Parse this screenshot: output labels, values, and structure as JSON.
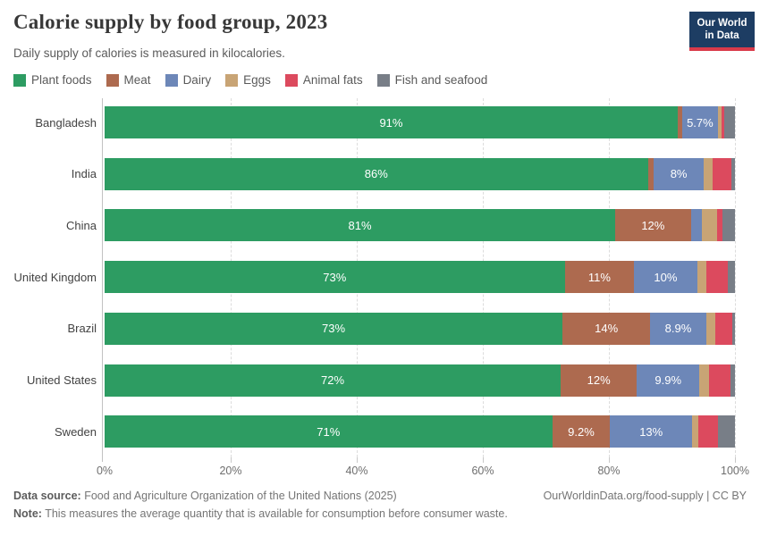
{
  "header": {
    "title": "Calorie supply by food group, 2023",
    "subtitle": "Daily supply of calories is measured in kilocalories.",
    "logo": {
      "line1": "Our World",
      "line2": "in Data",
      "bg_color": "#1d3d63",
      "accent_color": "#d93a4a"
    }
  },
  "chart_data": {
    "type": "bar",
    "stacked": true,
    "orientation": "horizontal",
    "unit": "%",
    "xlim": [
      0,
      100
    ],
    "grid": "dashed-vertical",
    "legend_position": "top",
    "categories": [
      "Bangladesh",
      "India",
      "China",
      "United Kingdom",
      "Brazil",
      "United States",
      "Sweden"
    ],
    "series": [
      {
        "name": "Plant foods",
        "slug": "plant-foods",
        "color": "#2d9c62",
        "values": [
          91,
          86,
          81,
          73,
          73,
          72,
          71
        ],
        "labels": [
          "91%",
          "86%",
          "81%",
          "73%",
          "73%",
          "72%",
          "71%"
        ]
      },
      {
        "name": "Meat",
        "slug": "meat",
        "color": "#ad6a4f",
        "values": [
          0.7,
          0.9,
          12,
          11,
          14,
          12,
          9.2
        ],
        "labels": [
          "",
          "",
          "12%",
          "11%",
          "14%",
          "12%",
          "9.2%"
        ]
      },
      {
        "name": "Dairy",
        "slug": "dairy",
        "color": "#6d87b8",
        "values": [
          5.7,
          8,
          1.7,
          10,
          8.9,
          9.9,
          13
        ],
        "labels": [
          "5.7%",
          "8%",
          "",
          "10%",
          "8.9%",
          "9.9%",
          "13%"
        ]
      },
      {
        "name": "Eggs",
        "slug": "eggs",
        "color": "#c8a475",
        "values": [
          0.6,
          1.4,
          2.4,
          1.4,
          1.4,
          1.5,
          1.0
        ],
        "labels": [
          "",
          "",
          "",
          "",
          "",
          "",
          ""
        ]
      },
      {
        "name": "Animal fats",
        "slug": "animal-fats",
        "color": "#dc4a5e",
        "values": [
          0.4,
          3.0,
          0.9,
          3.4,
          2.8,
          3.4,
          3.1
        ],
        "labels": [
          "",
          "",
          "",
          "",
          "",
          "",
          ""
        ]
      },
      {
        "name": "Fish and seafood",
        "slug": "fish-and-seafood",
        "color": "#787e87",
        "values": [
          1.7,
          0.5,
          2.0,
          1.2,
          0.4,
          0.7,
          2.7
        ],
        "labels": [
          "",
          "",
          "",
          "",
          "",
          "",
          ""
        ]
      }
    ],
    "xticks": [
      {
        "label": "0%",
        "value": 0
      },
      {
        "label": "20%",
        "value": 20
      },
      {
        "label": "40%",
        "value": 40
      },
      {
        "label": "60%",
        "value": 60
      },
      {
        "label": "80%",
        "value": 80
      },
      {
        "label": "100%",
        "value": 100
      }
    ]
  },
  "footer": {
    "source_label": "Data source:",
    "source_text": " Food and Agriculture Organization of the United Nations (2025)",
    "link_text": "OurWorldinData.org/food-supply | CC BY",
    "note_label": "Note:",
    "note_text": " This measures the average quantity that is available for consumption before consumer waste."
  }
}
